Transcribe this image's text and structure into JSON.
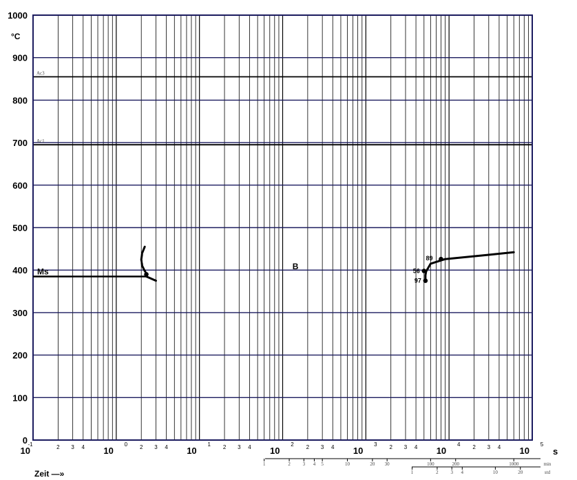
{
  "chart_data": {
    "type": "line",
    "title": "",
    "x_axis": {
      "scale": "log",
      "range": [
        0.1,
        100000
      ],
      "unit": "s",
      "decade_base": "10",
      "decade_exponents": [
        "-1",
        "0",
        "1",
        "2",
        "3",
        "4",
        "5"
      ],
      "minor_tick_labels": [
        "2",
        "3",
        "4"
      ]
    },
    "y_axis": {
      "unit": "°C",
      "range": [
        0,
        1000
      ],
      "ticks": [
        "0",
        "100",
        "200",
        "300",
        "400",
        "500",
        "600",
        "700",
        "800",
        "900",
        "1000"
      ]
    },
    "time_label": "Zeit —»",
    "minutes_scale": {
      "unit": "min",
      "labels": [
        "1",
        "2",
        "3",
        "4",
        "5",
        "10",
        "20",
        "30",
        "100",
        "200",
        "1000"
      ]
    },
    "hours_scale": {
      "unit": "std",
      "labels": [
        "1",
        "2",
        "3",
        "4",
        "10",
        "20"
      ]
    },
    "reference_lines": [
      {
        "name": "Ac3",
        "value": 855
      },
      {
        "name": "Ac1",
        "value": 695
      }
    ],
    "ms": {
      "name": "Ms",
      "value": 385
    },
    "region_labels": [
      {
        "text": "B",
        "x": 150,
        "y": 405
      }
    ],
    "series": [
      {
        "curve": "ms-tail",
        "points": [
          [
            2.3,
            385
          ],
          [
            3.0,
            375
          ]
        ]
      },
      {
        "curve": "left-nose-upper",
        "points": [
          [
            2.2,
            455
          ],
          [
            2.05,
            440
          ],
          [
            2.0,
            425
          ],
          [
            2.05,
            410
          ]
        ]
      },
      {
        "curve": "left-nose-lower",
        "points": [
          [
            2.05,
            410
          ],
          [
            2.2,
            398
          ],
          [
            2.35,
            390
          ]
        ]
      },
      {
        "curve": "right-bainite",
        "points": [
          [
            5200,
            375
          ],
          [
            5200,
            388
          ],
          [
            5300,
            397
          ],
          [
            6000,
            415
          ],
          [
            9000,
            426
          ],
          [
            30000,
            436
          ],
          [
            60000,
            442
          ]
        ]
      }
    ],
    "markers": [
      {
        "x": 2.3,
        "y": 390,
        "label": ""
      },
      {
        "x": 5000,
        "y": 398,
        "label": "56"
      },
      {
        "x": 5200,
        "y": 375,
        "label": "97"
      },
      {
        "x": 8000,
        "y": 426,
        "label": "89"
      }
    ]
  }
}
